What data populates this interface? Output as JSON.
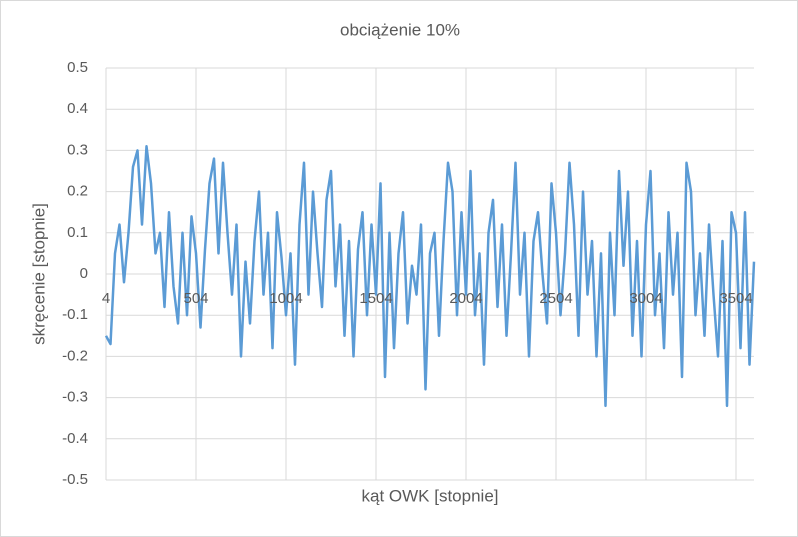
{
  "chart_data": {
    "type": "line",
    "title": "obciążenie 10%",
    "x_label": "kąt OWK [stopnie]",
    "y_label": "skręcenie [stopnie]",
    "xlim": [
      4,
      3604
    ],
    "xticks": [
      4,
      504,
      1004,
      1504,
      2004,
      2504,
      3004,
      3504
    ],
    "ylim": [
      -0.5,
      0.5
    ],
    "yticks": [
      0.5,
      0.4,
      0.3,
      0.2,
      0.1,
      0,
      -0.1,
      -0.2,
      -0.3,
      -0.4,
      -0.5
    ],
    "grid": true,
    "x": [
      4,
      29,
      54,
      79,
      104,
      129,
      154,
      179,
      204,
      229,
      254,
      279,
      304,
      329,
      354,
      379,
      404,
      429,
      454,
      479,
      504,
      529,
      554,
      579,
      604,
      629,
      654,
      679,
      704,
      729,
      754,
      779,
      804,
      829,
      854,
      879,
      904,
      929,
      954,
      979,
      1004,
      1029,
      1054,
      1079,
      1104,
      1129,
      1154,
      1179,
      1204,
      1229,
      1254,
      1279,
      1304,
      1329,
      1354,
      1379,
      1404,
      1429,
      1454,
      1479,
      1504,
      1529,
      1554,
      1579,
      1604,
      1629,
      1654,
      1679,
      1704,
      1729,
      1754,
      1779,
      1804,
      1829,
      1854,
      1879,
      1904,
      1929,
      1954,
      1979,
      2004,
      2029,
      2054,
      2079,
      2104,
      2129,
      2154,
      2179,
      2204,
      2229,
      2254,
      2279,
      2304,
      2329,
      2354,
      2379,
      2404,
      2429,
      2454,
      2479,
      2504,
      2529,
      2554,
      2579,
      2604,
      2629,
      2654,
      2679,
      2704,
      2729,
      2754,
      2779,
      2804,
      2829,
      2854,
      2879,
      2904,
      2929,
      2954,
      2979,
      3004,
      3029,
      3054,
      3079,
      3104,
      3129,
      3154,
      3179,
      3204,
      3229,
      3254,
      3279,
      3304,
      3329,
      3354,
      3379,
      3404,
      3429,
      3454,
      3479,
      3504,
      3529,
      3554,
      3579,
      3604
    ],
    "series": [
      {
        "name": "skręcenie",
        "color": "#5b9bd5",
        "values": [
          -0.15,
          -0.17,
          0.05,
          0.12,
          -0.02,
          0.1,
          0.26,
          0.3,
          0.12,
          0.31,
          0.22,
          0.05,
          0.1,
          -0.08,
          0.15,
          -0.03,
          -0.12,
          0.1,
          -0.1,
          0.14,
          0.05,
          -0.13,
          0.06,
          0.22,
          0.28,
          0.05,
          0.27,
          0.1,
          -0.05,
          0.12,
          -0.2,
          0.03,
          -0.12,
          0.08,
          0.2,
          -0.05,
          0.1,
          -0.18,
          0.15,
          0.04,
          -0.1,
          0.05,
          -0.22,
          0.12,
          0.27,
          -0.05,
          0.2,
          0.05,
          -0.08,
          0.18,
          0.25,
          -0.03,
          0.12,
          -0.15,
          0.08,
          -0.2,
          0.06,
          0.15,
          -0.1,
          0.12,
          -0.05,
          0.22,
          -0.25,
          0.1,
          -0.18,
          0.05,
          0.15,
          -0.12,
          0.02,
          -0.05,
          0.12,
          -0.28,
          0.05,
          0.1,
          -0.15,
          0.08,
          0.27,
          0.2,
          -0.1,
          0.15,
          -0.05,
          0.25,
          -0.1,
          0.05,
          -0.22,
          0.1,
          0.18,
          -0.08,
          0.12,
          -0.15,
          0.05,
          0.27,
          -0.05,
          0.1,
          -0.2,
          0.08,
          0.15,
          0.0,
          -0.12,
          0.22,
          0.1,
          -0.1,
          0.05,
          0.27,
          0.12,
          -0.15,
          0.2,
          -0.05,
          0.08,
          -0.2,
          0.05,
          -0.32,
          0.1,
          -0.1,
          0.25,
          0.02,
          0.2,
          -0.15,
          0.08,
          -0.2,
          0.12,
          0.25,
          -0.1,
          0.05,
          -0.18,
          0.15,
          -0.05,
          0.1,
          -0.25,
          0.27,
          0.2,
          -0.1,
          0.05,
          -0.15,
          0.12,
          -0.05,
          -0.2,
          0.08,
          -0.32,
          0.15,
          0.1,
          -0.18,
          0.15,
          -0.22,
          0.03
        ]
      }
    ]
  }
}
